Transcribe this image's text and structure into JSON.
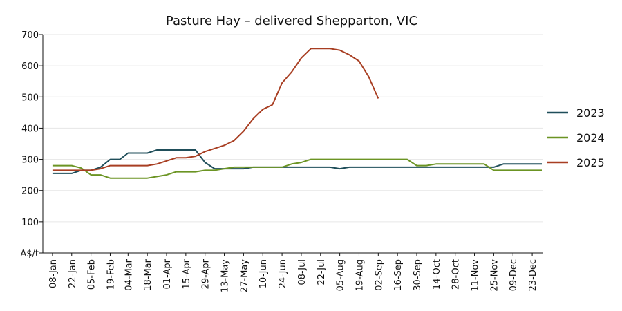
{
  "chart_data": {
    "type": "line",
    "title": "Pasture Hay – delivered Shepparton, VIC",
    "ylabel": "A$/t",
    "xlabel": "",
    "ylim": [
      0,
      700
    ],
    "yticks": [
      100,
      200,
      300,
      400,
      500,
      600,
      700
    ],
    "grid": "horizontal",
    "legend_position": "right",
    "x_tick_labels": [
      "08-Jan",
      "22-Jan",
      "05-Feb",
      "19-Feb",
      "04-Mar",
      "18-Mar",
      "01-Apr",
      "15-Apr",
      "29-Apr",
      "13-May",
      "27-May",
      "10-Jun",
      "24-Jun",
      "08-Jul",
      "22-Jul",
      "05-Aug",
      "19-Aug",
      "02-Sep",
      "16-Sep",
      "30-Sep",
      "14-Oct",
      "28-Oct",
      "11-Nov",
      "25-Nov",
      "09-Dec",
      "23-Dec"
    ],
    "series": [
      {
        "name": "2023",
        "color": "#1f4e5a",
        "points": [
          [
            "08-Jan",
            255
          ],
          [
            "22-Jan",
            255
          ],
          [
            "29-Jan",
            265
          ],
          [
            "05-Feb",
            265
          ],
          [
            "12-Feb",
            275
          ],
          [
            "19-Feb",
            300
          ],
          [
            "26-Feb",
            300
          ],
          [
            "04-Mar",
            320
          ],
          [
            "18-Mar",
            320
          ],
          [
            "25-Mar",
            330
          ],
          [
            "15-Apr",
            330
          ],
          [
            "22-Apr",
            330
          ],
          [
            "29-Apr",
            290
          ],
          [
            "06-May",
            270
          ],
          [
            "27-May",
            270
          ],
          [
            "03-Jun",
            275
          ],
          [
            "24-Jun",
            275
          ],
          [
            "01-Jul",
            275
          ],
          [
            "29-Jul",
            275
          ],
          [
            "05-Aug",
            270
          ],
          [
            "12-Aug",
            275
          ],
          [
            "16-Sep",
            275
          ],
          [
            "30-Sep",
            275
          ],
          [
            "25-Nov",
            275
          ],
          [
            "02-Dec",
            285
          ],
          [
            "30-Dec",
            285
          ]
        ]
      },
      {
        "name": "2024",
        "color": "#6b9423",
        "points": [
          [
            "08-Jan",
            280
          ],
          [
            "22-Jan",
            280
          ],
          [
            "29-Jan",
            272
          ],
          [
            "05-Feb",
            250
          ],
          [
            "12-Feb",
            250
          ],
          [
            "19-Feb",
            240
          ],
          [
            "18-Mar",
            240
          ],
          [
            "25-Mar",
            245
          ],
          [
            "01-Apr",
            250
          ],
          [
            "08-Apr",
            260
          ],
          [
            "22-Apr",
            260
          ],
          [
            "29-Apr",
            265
          ],
          [
            "06-May",
            265
          ],
          [
            "13-May",
            270
          ],
          [
            "20-May",
            275
          ],
          [
            "10-Jun",
            275
          ],
          [
            "24-Jun",
            275
          ],
          [
            "01-Jul",
            285
          ],
          [
            "08-Jul",
            290
          ],
          [
            "15-Jul",
            300
          ],
          [
            "23-Sep",
            300
          ],
          [
            "30-Sep",
            280
          ],
          [
            "07-Oct",
            280
          ],
          [
            "14-Oct",
            285
          ],
          [
            "18-Nov",
            285
          ],
          [
            "25-Nov",
            265
          ],
          [
            "30-Dec",
            265
          ]
        ]
      },
      {
        "name": "2025",
        "color": "#a83e22",
        "points": [
          [
            "08-Jan",
            265
          ],
          [
            "29-Jan",
            265
          ],
          [
            "05-Feb",
            265
          ],
          [
            "12-Feb",
            270
          ],
          [
            "19-Feb",
            280
          ],
          [
            "18-Mar",
            280
          ],
          [
            "25-Mar",
            285
          ],
          [
            "01-Apr",
            295
          ],
          [
            "08-Apr",
            305
          ],
          [
            "15-Apr",
            305
          ],
          [
            "22-Apr",
            310
          ],
          [
            "29-Apr",
            325
          ],
          [
            "06-May",
            335
          ],
          [
            "13-May",
            345
          ],
          [
            "20-May",
            360
          ],
          [
            "27-May",
            390
          ],
          [
            "03-Jun",
            430
          ],
          [
            "10-Jun",
            460
          ],
          [
            "17-Jun",
            475
          ],
          [
            "24-Jun",
            545
          ],
          [
            "01-Jul",
            580
          ],
          [
            "08-Jul",
            625
          ],
          [
            "15-Jul",
            655
          ],
          [
            "22-Jul",
            655
          ],
          [
            "29-Jul",
            655
          ],
          [
            "05-Aug",
            650
          ],
          [
            "12-Aug",
            635
          ],
          [
            "19-Aug",
            615
          ],
          [
            "26-Aug",
            565
          ],
          [
            "02-Sep",
            495
          ]
        ]
      }
    ]
  }
}
